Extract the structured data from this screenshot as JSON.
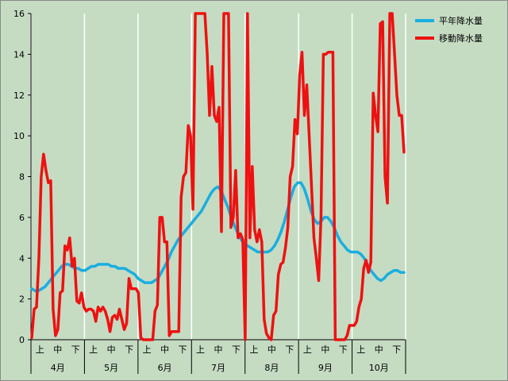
{
  "chart_data": {
    "type": "line",
    "ylim": [
      0,
      16
    ],
    "yticks": [
      0,
      2,
      4,
      6,
      8,
      10,
      12,
      14,
      16
    ],
    "grid": "vertical-month-lines",
    "legend_position": "top-right",
    "months": [
      "4月",
      "5月",
      "6月",
      "7月",
      "8月",
      "9月",
      "10月"
    ],
    "subcategories": [
      "上",
      "中",
      "下"
    ],
    "series": [
      {
        "name": "平年降水量",
        "color": "#1aaee0",
        "values": [
          2.5,
          2.4,
          2.4,
          2.5,
          2.6,
          2.8,
          3.0,
          3.2,
          3.4,
          3.6,
          3.7,
          3.7,
          3.6,
          3.5,
          3.5,
          3.4,
          3.4,
          3.5,
          3.6,
          3.6,
          3.7,
          3.7,
          3.7,
          3.7,
          3.6,
          3.6,
          3.5,
          3.5,
          3.5,
          3.4,
          3.3,
          3.2,
          3.0,
          2.9,
          2.8,
          2.8,
          2.8,
          2.9,
          3.0,
          3.3,
          3.6,
          3.9,
          4.3,
          4.6,
          4.9,
          5.1,
          5.3,
          5.5,
          5.7,
          5.9,
          6.1,
          6.3,
          6.6,
          6.9,
          7.2,
          7.4,
          7.5,
          7.3,
          6.9,
          6.5,
          6.0,
          5.6,
          5.2,
          4.9,
          4.7,
          4.6,
          4.5,
          4.4,
          4.3,
          4.3,
          4.3,
          4.3,
          4.4,
          4.6,
          4.9,
          5.3,
          5.8,
          6.4,
          7.0,
          7.5,
          7.7,
          7.7,
          7.4,
          6.9,
          6.3,
          5.9,
          5.7,
          5.8,
          6.0,
          6.0,
          5.8,
          5.5,
          5.1,
          4.8,
          4.6,
          4.4,
          4.3,
          4.3,
          4.3,
          4.2,
          4.0,
          3.7,
          3.4,
          3.2,
          3.0,
          2.9,
          3.0,
          3.2,
          3.3,
          3.4,
          3.4,
          3.3,
          3.3
        ]
      },
      {
        "name": "移動降水量",
        "color": "#ee1111",
        "values": [
          0.1,
          1.5,
          1.6,
          4.0,
          8.0,
          9.1,
          8.3,
          7.7,
          7.8,
          1.5,
          0.2,
          0.5,
          2.3,
          2.4,
          4.6,
          4.4,
          5.0,
          3.6,
          4.0,
          1.9,
          1.8,
          2.3,
          1.6,
          1.4,
          1.5,
          1.5,
          1.4,
          0.9,
          1.6,
          1.4,
          1.6,
          1.4,
          1.0,
          0.4,
          1.1,
          1.2,
          1.0,
          1.5,
          1.0,
          0.5,
          0.8,
          3.0,
          2.5,
          2.5,
          2.5,
          2.3,
          0.1,
          0.0,
          0.0,
          0.0,
          0.0,
          0.0,
          1.4,
          1.7,
          6.0,
          6.0,
          4.8,
          4.8,
          0.2,
          0.4,
          0.4,
          0.4,
          0.4,
          7.0,
          8.0,
          8.2,
          10.5,
          10.0,
          6.4,
          16.0,
          16.0,
          16.0,
          16.0,
          16.0,
          14.0,
          11.0,
          13.4,
          11.0,
          10.7,
          11.4,
          5.3,
          16.0,
          16.0,
          16.0,
          5.5,
          6.0,
          8.3,
          5.0,
          5.2,
          4.9,
          0.0,
          16.0,
          5.0,
          8.5,
          5.4,
          4.8,
          5.4,
          4.8,
          1.0,
          0.3,
          0.1,
          0.0,
          1.2,
          1.4,
          3.2,
          3.7,
          3.8,
          4.5,
          5.5,
          8.0,
          8.5,
          10.8,
          10.1,
          13.0,
          14.1,
          11.0,
          12.5,
          10.0,
          7.5,
          5.0,
          4.0,
          2.9,
          6.0,
          14.0,
          14.0,
          14.1,
          14.1,
          14.1,
          0.0,
          0.0,
          0.0,
          0.0,
          0.0,
          0.2,
          0.7,
          0.7,
          0.7,
          0.9,
          1.6,
          2.0,
          3.5,
          3.9,
          3.3,
          3.8,
          12.1,
          11.0,
          10.2,
          15.5,
          15.6,
          8.0,
          6.7,
          16.0,
          16.0,
          14.0,
          12.0,
          11.0,
          11.0,
          9.2
        ]
      }
    ]
  }
}
